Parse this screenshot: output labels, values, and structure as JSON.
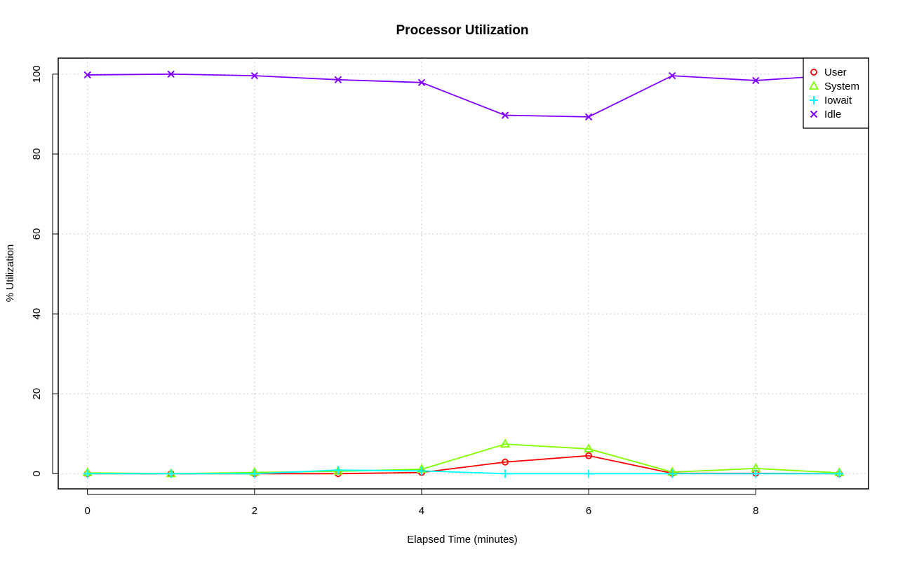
{
  "chart_data": {
    "type": "line",
    "title": "Processor Utilization",
    "xlabel": "Elapsed Time (minutes)",
    "ylabel": "% Utilization",
    "xlim": [
      -0.35,
      9.35
    ],
    "ylim": [
      -3.8,
      104
    ],
    "x_ticks": [
      0,
      2,
      4,
      6,
      8
    ],
    "y_ticks": [
      0,
      20,
      40,
      60,
      80,
      100
    ],
    "grid": true,
    "legend_position": "top-right",
    "x": [
      0,
      1,
      2,
      3,
      4,
      5,
      6,
      7,
      8,
      9
    ],
    "series": [
      {
        "name": "User",
        "marker": "circle",
        "color": "#ff0000",
        "values": [
          0,
          0,
          0,
          0,
          0.3,
          2.9,
          4.5,
          0.1,
          0.1,
          0
        ]
      },
      {
        "name": "System",
        "marker": "triangle",
        "color": "#80ff00",
        "values": [
          0.2,
          0,
          0.3,
          0.6,
          1.1,
          7.4,
          6.2,
          0.4,
          1.3,
          0.2
        ]
      },
      {
        "name": "Iowait",
        "marker": "plus",
        "color": "#00ffff",
        "values": [
          0,
          0,
          0,
          0.9,
          0.7,
          0,
          0,
          0,
          0,
          0
        ]
      },
      {
        "name": "Idle",
        "marker": "cross",
        "color": "#8000ff",
        "values": [
          99.8,
          100,
          99.6,
          98.6,
          97.9,
          89.7,
          89.3,
          99.6,
          98.4,
          99.8
        ]
      }
    ]
  }
}
